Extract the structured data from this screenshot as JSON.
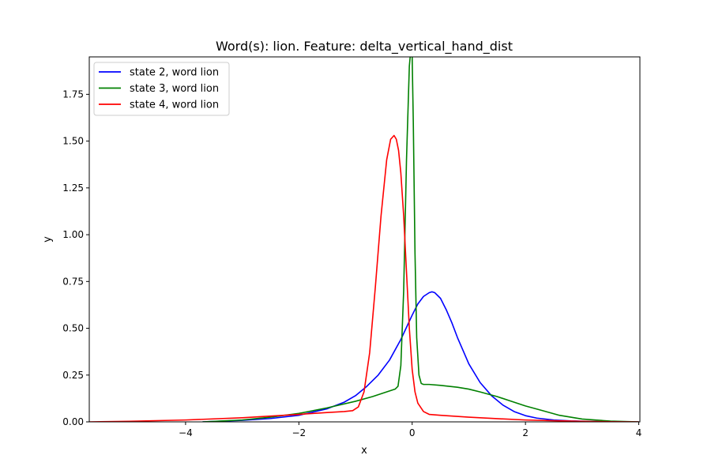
{
  "chart_data": {
    "type": "line",
    "title": "Word(s): lion. Feature: delta_vertical_hand_dist",
    "xlabel": "x",
    "ylabel": "y",
    "xlim": [
      -5.7,
      4.02
    ],
    "ylim": [
      0,
      1.95
    ],
    "grid": false,
    "legend_position": "top-left",
    "x_ticks": [
      -4,
      -2,
      0,
      2,
      4
    ],
    "x_tick_labels": [
      "−4",
      "−2",
      "0",
      "2",
      "4"
    ],
    "y_ticks": [
      0,
      0.25,
      0.5,
      0.75,
      1.0,
      1.25,
      1.5,
      1.75
    ],
    "y_tick_labels": [
      "0.00",
      "0.25",
      "0.50",
      "0.75",
      "1.00",
      "1.25",
      "1.50",
      "1.75"
    ],
    "series": [
      {
        "name": "state 2, word lion",
        "color": "#0000ff",
        "x": [
          -3.7,
          -3.0,
          -2.5,
          -2.0,
          -1.5,
          -1.2,
          -1.0,
          -0.8,
          -0.6,
          -0.4,
          -0.2,
          0.0,
          0.1,
          0.2,
          0.3,
          0.35,
          0.4,
          0.5,
          0.6,
          0.7,
          0.8,
          0.9,
          1.0,
          1.2,
          1.4,
          1.6,
          1.8,
          2.0,
          2.2,
          2.5,
          2.8,
          3.2,
          3.6,
          4.0
        ],
        "y": [
          0.0,
          0.008,
          0.018,
          0.035,
          0.07,
          0.105,
          0.14,
          0.19,
          0.25,
          0.33,
          0.44,
          0.57,
          0.63,
          0.67,
          0.69,
          0.695,
          0.69,
          0.66,
          0.6,
          0.53,
          0.45,
          0.38,
          0.31,
          0.21,
          0.14,
          0.09,
          0.055,
          0.033,
          0.02,
          0.01,
          0.005,
          0.002,
          0.001,
          0.0
        ]
      },
      {
        "name": "state 3, word lion",
        "color": "#008000",
        "x": [
          -3.7,
          -3.0,
          -2.5,
          -2.0,
          -1.5,
          -1.0,
          -0.7,
          -0.4,
          -0.3,
          -0.25,
          -0.2,
          -0.15,
          -0.1,
          -0.05,
          -0.02,
          0.0,
          0.02,
          0.05,
          0.08,
          0.12,
          0.16,
          0.2,
          0.3,
          0.5,
          0.8,
          1.0,
          1.2,
          1.5,
          1.8,
          2.0,
          2.3,
          2.6,
          3.0,
          3.5,
          4.0
        ],
        "y": [
          0.0,
          0.01,
          0.025,
          0.045,
          0.075,
          0.11,
          0.135,
          0.165,
          0.175,
          0.19,
          0.3,
          0.7,
          1.4,
          1.9,
          2.0,
          1.95,
          1.6,
          0.9,
          0.45,
          0.25,
          0.205,
          0.2,
          0.2,
          0.195,
          0.185,
          0.175,
          0.16,
          0.135,
          0.105,
          0.085,
          0.06,
          0.035,
          0.015,
          0.004,
          0.0
        ]
      },
      {
        "name": "state 4, word lion",
        "color": "#ff0000",
        "x": [
          -5.7,
          -5.0,
          -4.0,
          -3.0,
          -2.0,
          -1.5,
          -1.2,
          -1.05,
          -0.95,
          -0.85,
          -0.75,
          -0.65,
          -0.55,
          -0.45,
          -0.38,
          -0.32,
          -0.28,
          -0.24,
          -0.2,
          -0.15,
          -0.1,
          -0.05,
          0.0,
          0.05,
          0.1,
          0.2,
          0.3,
          0.5,
          1.0,
          1.5,
          2.0,
          2.5,
          3.0,
          3.5,
          4.0
        ],
        "y": [
          0.0,
          0.003,
          0.01,
          0.022,
          0.04,
          0.05,
          0.055,
          0.06,
          0.08,
          0.16,
          0.37,
          0.72,
          1.1,
          1.4,
          1.51,
          1.53,
          1.51,
          1.45,
          1.33,
          1.1,
          0.8,
          0.5,
          0.28,
          0.16,
          0.1,
          0.055,
          0.04,
          0.035,
          0.025,
          0.017,
          0.01,
          0.006,
          0.003,
          0.001,
          0.0
        ]
      }
    ]
  }
}
